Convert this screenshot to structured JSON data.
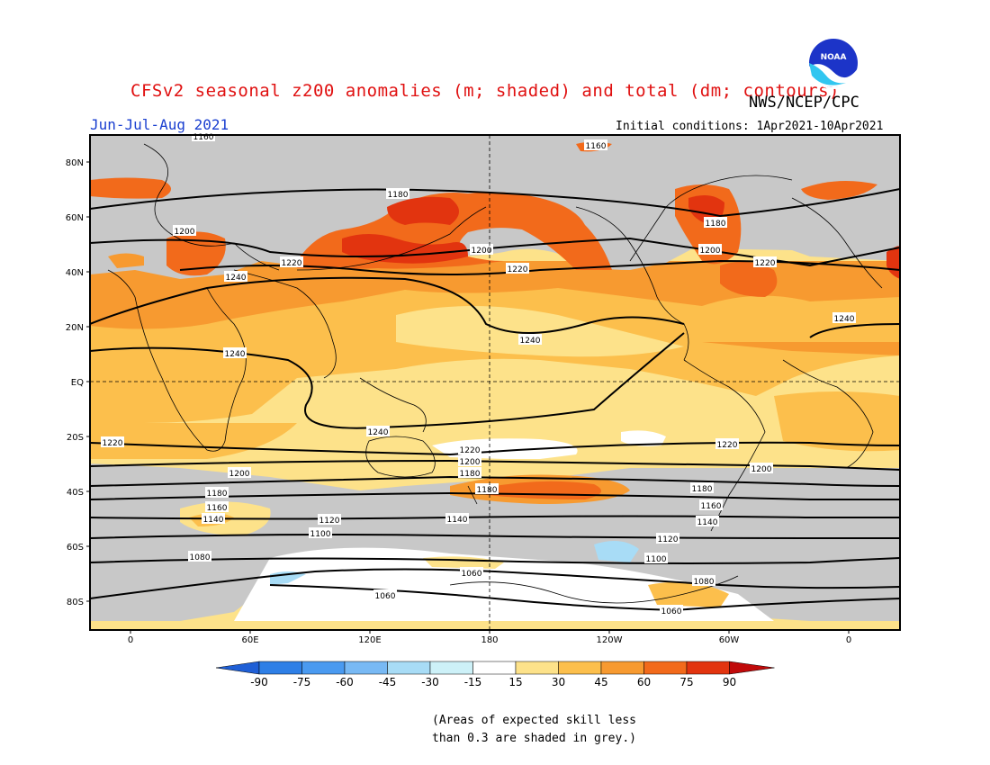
{
  "title": "CFSv2 seasonal z200 anomalies (m; shaded) and total (dm; contours)",
  "agency": "NWS/NCEP/CPC",
  "logo_text": "NOAA",
  "period": "Jun-Jul-Aug 2021",
  "initial_conditions": "Initial conditions: 1Apr2021-10Apr2021",
  "lat_labels": [
    "80N",
    "60N",
    "40N",
    "20N",
    "EQ",
    "20S",
    "40S",
    "60S",
    "80S"
  ],
  "lon_labels": [
    "0",
    "60E",
    "120E",
    "180",
    "120W",
    "60W",
    "0"
  ],
  "colorbar": {
    "ticks": [
      "-90",
      "-75",
      "-60",
      "-45",
      "-30",
      "-15",
      "15",
      "30",
      "45",
      "60",
      "75",
      "90"
    ],
    "colors": [
      "#1f5fd6",
      "#2e7fe6",
      "#4a9af0",
      "#78b9f4",
      "#a8dcf6",
      "#cdf1f8",
      "#ffffff",
      "#fde28a",
      "#fcbf4c",
      "#f79a30",
      "#f26a1b",
      "#e2340f",
      "#c00a0a"
    ]
  },
  "colors": {
    "grey_skill_mask": "#c8c8c8",
    "title": "#e01010",
    "period": "#1a3fd0"
  },
  "contour_levels": [
    "1060",
    "1080",
    "1100",
    "1120",
    "1140",
    "1160",
    "1180",
    "1200",
    "1220",
    "1240"
  ],
  "footnote_line1": "(Areas of expected skill less",
  "footnote_line2": "than 0.3 are shaded in grey.)"
}
